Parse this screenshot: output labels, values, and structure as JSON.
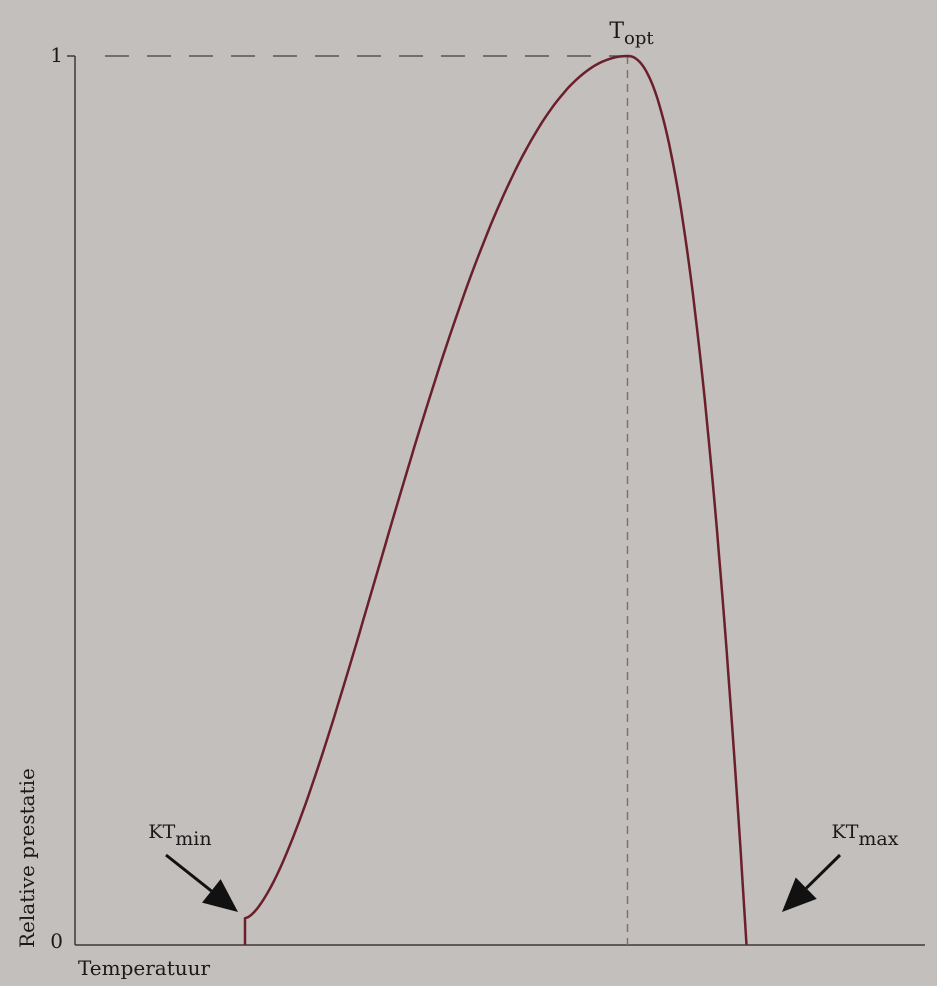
{
  "chart_data": {
    "type": "line",
    "xlabel": "Temperatuur",
    "ylabel": "Relative prestatie",
    "yticks": [
      {
        "value": 0,
        "label": "0"
      },
      {
        "value": 1,
        "label": "1"
      }
    ],
    "ylim": [
      0,
      1
    ],
    "annotations": {
      "t_opt": {
        "base": "T",
        "sub": "opt"
      },
      "kt_min": {
        "base": "KT",
        "sub": "min"
      },
      "kt_max": {
        "base": "KT",
        "sub": "max"
      }
    },
    "curve": {
      "t_min": 0.2,
      "t_opt": 0.65,
      "t_max": 0.79,
      "start_value": 0.03,
      "peak_value": 1
    },
    "colors": {
      "curve": "#6b1f2a",
      "axis": "#3a3a3a",
      "guide": "#555555",
      "background": "#c2bfbc"
    },
    "grid": false,
    "legend": "none"
  }
}
